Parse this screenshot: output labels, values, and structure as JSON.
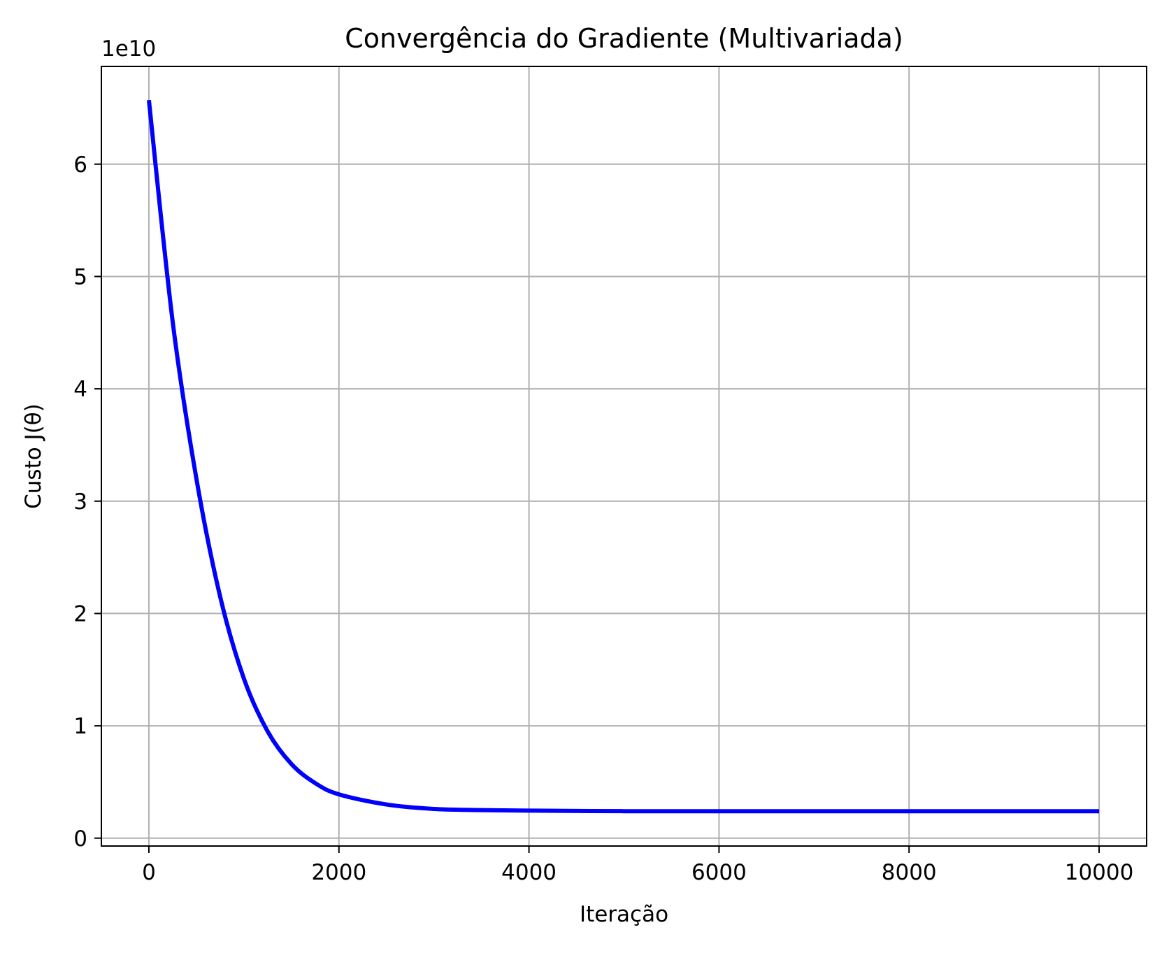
{
  "chart_data": {
    "type": "line",
    "title": "Convergência do Gradiente (Multivariada)",
    "xlabel": "Iteração",
    "ylabel": "Custo J(θ)",
    "y_offset_label": "1e10",
    "xlim": [
      -500,
      10500
    ],
    "ylim": [
      -0.07,
      6.87
    ],
    "x_ticks": [
      0,
      2000,
      4000,
      6000,
      8000,
      10000
    ],
    "x_tick_labels": [
      "0",
      "2000",
      "4000",
      "6000",
      "8000",
      "10000"
    ],
    "y_ticks": [
      0,
      1,
      2,
      3,
      4,
      5,
      6
    ],
    "y_tick_labels": [
      "0",
      "1",
      "2",
      "3",
      "4",
      "5",
      "6"
    ],
    "grid": true,
    "series": [
      {
        "color": "#0000ff",
        "x": [
          0,
          250,
          500,
          750,
          1000,
          1250,
          1500,
          1750,
          2000,
          2500,
          3000,
          3500,
          4000,
          5000,
          6000,
          7000,
          8000,
          9000,
          10000
        ],
        "y": [
          6.57,
          4.6,
          3.2,
          2.15,
          1.42,
          0.95,
          0.66,
          0.49,
          0.39,
          0.3,
          0.26,
          0.25,
          0.245,
          0.24,
          0.24,
          0.24,
          0.24,
          0.24,
          0.24
        ]
      }
    ]
  }
}
